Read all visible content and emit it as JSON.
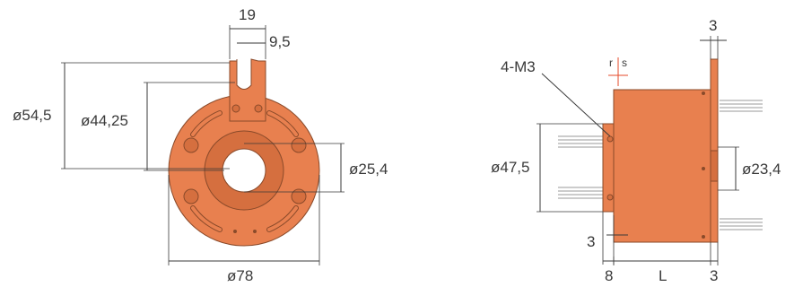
{
  "labels": {
    "d19": "19",
    "d95": "9,5",
    "d545": "ø54,5",
    "d4425": "ø44,25",
    "d254": "ø25,4",
    "d78": "ø78",
    "m3": "4-M3",
    "r": "r",
    "s": "s",
    "d3top": "3",
    "d475": "ø47,5",
    "d234": "ø23,4",
    "d3left": "3",
    "d8": "8",
    "dL": "L",
    "d3bottom": "3"
  },
  "colors": {
    "body": "#e8804f",
    "body_dark": "#d56f3f",
    "outline": "#8a4a2a",
    "dim_line": "#3a3a3a",
    "wire": "#9a9a9a"
  }
}
